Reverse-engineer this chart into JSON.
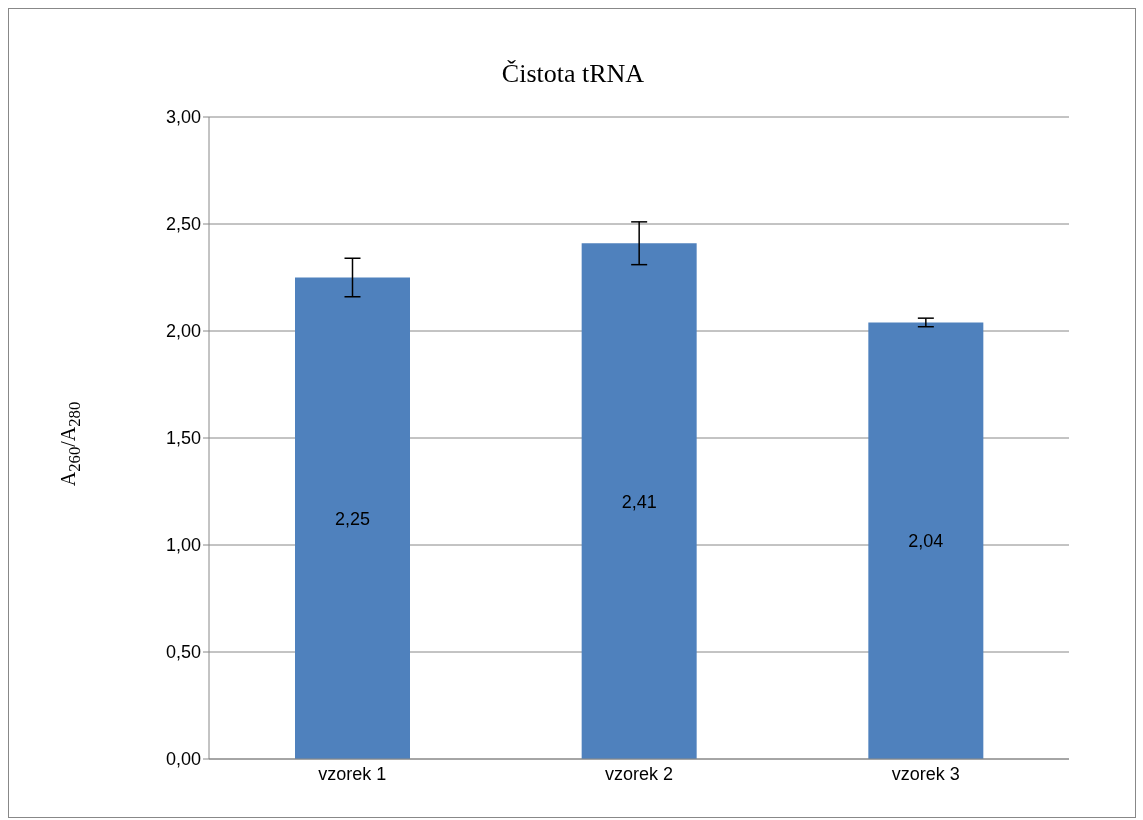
{
  "chart_data": {
    "type": "bar",
    "title": "Čistota tRNA",
    "ylabel": "A$_{260}$/A$_{280}$",
    "categories": [
      "vzorek 1",
      "vzorek 2",
      "vzorek 3"
    ],
    "values": [
      2.25,
      2.41,
      2.04
    ],
    "errors": [
      0.09,
      0.1,
      0.02
    ],
    "color": "#4f81bd",
    "ylim": [
      0,
      3
    ],
    "yticks": [
      {
        "value": 0,
        "label": "0,00"
      },
      {
        "value": 0.5,
        "label": "0,50"
      },
      {
        "value": 1,
        "label": "1,00"
      },
      {
        "value": 1.5,
        "label": "1,50"
      },
      {
        "value": 2,
        "label": "2,00"
      },
      {
        "value": 2.5,
        "label": "2,50"
      },
      {
        "value": 3,
        "label": "3,00"
      }
    ],
    "grid": "y",
    "legend": false,
    "value_labels": [
      "2,25",
      "2,41",
      "2,04"
    ]
  }
}
